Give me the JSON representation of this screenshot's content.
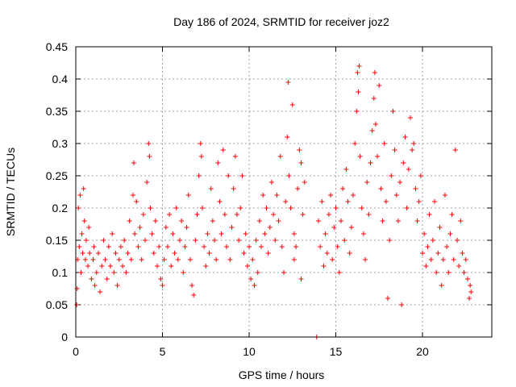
{
  "chart_data": {
    "type": "scatter",
    "title": "Day 186 of 2024, SRMTID for receiver joz2",
    "xlabel": "GPS time / hours",
    "ylabel": "SRMTID / TECUs",
    "xlim": [
      0,
      24
    ],
    "ylim": [
      0,
      0.45
    ],
    "x_ticks": [
      0,
      5,
      10,
      15,
      20
    ],
    "x_tick_labels": [
      "0",
      "5",
      "10",
      "15",
      "20"
    ],
    "y_ticks": [
      0,
      0.05,
      0.1,
      0.15,
      0.2,
      0.25,
      0.3,
      0.35,
      0.4,
      0.45
    ],
    "y_tick_labels": [
      "0",
      "0.05",
      "0.1",
      "0.15",
      "0.2",
      "0.25",
      "0.3",
      "0.35",
      "0.4",
      "0.45"
    ],
    "grid": true,
    "marker": "plus",
    "series": [
      {
        "name": "SRMTID",
        "color": "#ff0000",
        "points": [
          [
            0.05,
            0.05
          ],
          [
            0.08,
            0.075
          ],
          [
            0.1,
            0.12
          ],
          [
            0.15,
            0.2
          ],
          [
            0.2,
            0.14
          ],
          [
            0.25,
            0.22
          ],
          [
            0.3,
            0.1
          ],
          [
            0.35,
            0.16
          ],
          [
            0.4,
            0.13
          ],
          [
            0.45,
            0.23
          ],
          [
            0.5,
            0.18
          ],
          [
            0.55,
            0.12
          ],
          [
            0.6,
            0.15
          ],
          [
            0.7,
            0.11
          ],
          [
            0.75,
            0.17
          ],
          [
            0.8,
            0.13
          ],
          [
            0.9,
            0.09
          ],
          [
            1.0,
            0.12
          ],
          [
            1.05,
            0.14
          ],
          [
            1.1,
            0.08
          ],
          [
            1.2,
            0.1
          ],
          [
            1.3,
            0.13
          ],
          [
            1.4,
            0.07
          ],
          [
            1.5,
            0.11
          ],
          [
            1.6,
            0.15
          ],
          [
            1.7,
            0.12
          ],
          [
            1.8,
            0.09
          ],
          [
            1.9,
            0.14
          ],
          [
            2.0,
            0.11
          ],
          [
            2.1,
            0.16
          ],
          [
            2.2,
            0.1
          ],
          [
            2.3,
            0.13
          ],
          [
            2.4,
            0.08
          ],
          [
            2.5,
            0.12
          ],
          [
            2.6,
            0.14
          ],
          [
            2.7,
            0.11
          ],
          [
            2.8,
            0.15
          ],
          [
            2.9,
            0.1
          ],
          [
            3.0,
            0.13
          ],
          [
            3.1,
            0.18
          ],
          [
            3.2,
            0.12
          ],
          [
            3.3,
            0.22
          ],
          [
            3.35,
            0.27
          ],
          [
            3.4,
            0.16
          ],
          [
            3.5,
            0.21
          ],
          [
            3.6,
            0.14
          ],
          [
            3.7,
            0.17
          ],
          [
            3.8,
            0.12
          ],
          [
            3.9,
            0.19
          ],
          [
            4.0,
            0.15
          ],
          [
            4.1,
            0.24
          ],
          [
            4.2,
            0.3
          ],
          [
            4.25,
            0.28
          ],
          [
            4.3,
            0.2
          ],
          [
            4.4,
            0.16
          ],
          [
            4.5,
            0.13
          ],
          [
            4.6,
            0.18
          ],
          [
            4.7,
            0.11
          ],
          [
            4.8,
            0.14
          ],
          [
            4.9,
            0.09
          ],
          [
            5.0,
            0.08
          ],
          [
            5.1,
            0.12
          ],
          [
            5.2,
            0.17
          ],
          [
            5.3,
            0.14
          ],
          [
            5.4,
            0.19
          ],
          [
            5.5,
            0.11
          ],
          [
            5.6,
            0.16
          ],
          [
            5.7,
            0.13
          ],
          [
            5.8,
            0.2
          ],
          [
            5.9,
            0.12
          ],
          [
            6.0,
            0.15
          ],
          [
            6.1,
            0.18
          ],
          [
            6.2,
            0.1
          ],
          [
            6.3,
            0.14
          ],
          [
            6.4,
            0.17
          ],
          [
            6.5,
            0.22
          ],
          [
            6.6,
            0.12
          ],
          [
            6.7,
            0.08
          ],
          [
            6.8,
            0.065
          ],
          [
            6.9,
            0.15
          ],
          [
            7.0,
            0.19
          ],
          [
            7.1,
            0.25
          ],
          [
            7.2,
            0.3
          ],
          [
            7.25,
            0.28
          ],
          [
            7.3,
            0.2
          ],
          [
            7.4,
            0.14
          ],
          [
            7.5,
            0.11
          ],
          [
            7.6,
            0.16
          ],
          [
            7.7,
            0.13
          ],
          [
            7.8,
            0.23
          ],
          [
            7.9,
            0.18
          ],
          [
            8.0,
            0.15
          ],
          [
            8.1,
            0.12
          ],
          [
            8.2,
            0.27
          ],
          [
            8.3,
            0.21
          ],
          [
            8.4,
            0.16
          ],
          [
            8.5,
            0.29
          ],
          [
            8.6,
            0.19
          ],
          [
            8.7,
            0.14
          ],
          [
            8.8,
            0.25
          ],
          [
            8.9,
            0.12
          ],
          [
            9.0,
            0.17
          ],
          [
            9.1,
            0.23
          ],
          [
            9.2,
            0.28
          ],
          [
            9.3,
            0.19
          ],
          [
            9.4,
            0.15
          ],
          [
            9.5,
            0.2
          ],
          [
            9.6,
            0.25
          ],
          [
            9.7,
            0.13
          ],
          [
            9.8,
            0.16
          ],
          [
            9.9,
            0.11
          ],
          [
            10.0,
            0.14
          ],
          [
            10.1,
            0.09
          ],
          [
            10.2,
            0.12
          ],
          [
            10.3,
            0.08
          ],
          [
            10.4,
            0.15
          ],
          [
            10.5,
            0.1
          ],
          [
            10.6,
            0.18
          ],
          [
            10.7,
            0.14
          ],
          [
            10.8,
            0.22
          ],
          [
            10.9,
            0.16
          ],
          [
            11.0,
            0.2
          ],
          [
            11.1,
            0.13
          ],
          [
            11.2,
            0.17
          ],
          [
            11.3,
            0.24
          ],
          [
            11.4,
            0.19
          ],
          [
            11.5,
            0.15
          ],
          [
            11.6,
            0.22
          ],
          [
            11.7,
            0.18
          ],
          [
            11.8,
            0.28
          ],
          [
            11.9,
            0.14
          ],
          [
            12.0,
            0.1
          ],
          [
            12.1,
            0.21
          ],
          [
            12.2,
            0.31
          ],
          [
            12.25,
            0.395
          ],
          [
            12.3,
            0.25
          ],
          [
            12.4,
            0.2
          ],
          [
            12.5,
            0.36
          ],
          [
            12.6,
            0.16
          ],
          [
            12.7,
            0.14
          ],
          [
            12.8,
            0.23
          ],
          [
            12.9,
            0.29
          ],
          [
            13.0,
            0.27
          ],
          [
            13.1,
            0.19
          ],
          [
            13.2,
            0.24
          ],
          [
            13.0,
            0.09
          ],
          [
            12.6,
            0.12
          ],
          [
            13.9,
            0.0
          ],
          [
            14.0,
            0.18
          ],
          [
            14.1,
            0.14
          ],
          [
            14.2,
            0.21
          ],
          [
            14.3,
            0.11
          ],
          [
            14.4,
            0.16
          ],
          [
            14.5,
            0.13
          ],
          [
            14.6,
            0.19
          ],
          [
            14.7,
            0.22
          ],
          [
            14.8,
            0.12
          ],
          [
            14.9,
            0.17
          ],
          [
            15.0,
            0.2
          ],
          [
            15.1,
            0.14
          ],
          [
            15.2,
            0.1
          ],
          [
            15.3,
            0.18
          ],
          [
            15.4,
            0.23
          ],
          [
            15.5,
            0.15
          ],
          [
            15.6,
            0.26
          ],
          [
            15.7,
            0.21
          ],
          [
            15.8,
            0.13
          ],
          [
            15.9,
            0.17
          ],
          [
            16.0,
            0.22
          ],
          [
            16.1,
            0.3
          ],
          [
            16.2,
            0.35
          ],
          [
            16.25,
            0.41
          ],
          [
            16.3,
            0.38
          ],
          [
            16.35,
            0.42
          ],
          [
            16.4,
            0.28
          ],
          [
            16.5,
            0.2
          ],
          [
            16.6,
            0.16
          ],
          [
            16.7,
            0.12
          ],
          [
            16.8,
            0.24
          ],
          [
            16.9,
            0.19
          ],
          [
            17.0,
            0.27
          ],
          [
            17.1,
            0.32
          ],
          [
            17.2,
            0.37
          ],
          [
            17.25,
            0.41
          ],
          [
            17.3,
            0.33
          ],
          [
            17.4,
            0.28
          ],
          [
            17.5,
            0.39
          ],
          [
            17.6,
            0.23
          ],
          [
            17.7,
            0.18
          ],
          [
            17.8,
            0.3
          ],
          [
            17.9,
            0.21
          ],
          [
            18.0,
            0.06
          ],
          [
            18.1,
            0.15
          ],
          [
            18.2,
            0.25
          ],
          [
            18.3,
            0.35
          ],
          [
            18.4,
            0.29
          ],
          [
            18.5,
            0.22
          ],
          [
            18.6,
            0.18
          ],
          [
            18.7,
            0.24
          ],
          [
            18.8,
            0.05
          ],
          [
            18.9,
            0.27
          ],
          [
            19.0,
            0.31
          ],
          [
            19.1,
            0.2
          ],
          [
            19.2,
            0.26
          ],
          [
            19.3,
            0.34
          ],
          [
            19.4,
            0.29
          ],
          [
            19.5,
            0.3
          ],
          [
            19.6,
            0.23
          ],
          [
            19.7,
            0.18
          ],
          [
            19.8,
            0.21
          ],
          [
            19.9,
            0.25
          ],
          [
            20.0,
            0.13
          ],
          [
            20.1,
            0.16
          ],
          [
            20.2,
            0.11
          ],
          [
            20.3,
            0.14
          ],
          [
            20.4,
            0.19
          ],
          [
            20.5,
            0.12
          ],
          [
            20.6,
            0.15
          ],
          [
            20.7,
            0.21
          ],
          [
            20.8,
            0.1
          ],
          [
            20.9,
            0.13
          ],
          [
            21.0,
            0.17
          ],
          [
            21.1,
            0.08
          ],
          [
            21.2,
            0.12
          ],
          [
            21.3,
            0.22
          ],
          [
            21.4,
            0.14
          ],
          [
            21.5,
            0.1
          ],
          [
            21.6,
            0.16
          ],
          [
            21.7,
            0.19
          ],
          [
            21.8,
            0.12
          ],
          [
            21.9,
            0.29
          ],
          [
            22.0,
            0.15
          ],
          [
            22.1,
            0.11
          ],
          [
            22.2,
            0.18
          ],
          [
            22.3,
            0.13
          ],
          [
            22.4,
            0.1
          ],
          [
            22.5,
            0.12
          ],
          [
            22.6,
            0.09
          ],
          [
            22.7,
            0.06
          ],
          [
            22.75,
            0.08
          ],
          [
            22.8,
            0.07
          ]
        ]
      }
    ]
  }
}
